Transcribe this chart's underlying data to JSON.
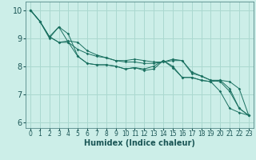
{
  "background_color": "#cceee8",
  "grid_color": "#aad8d0",
  "line_color": "#1a7060",
  "marker_color": "#1a7060",
  "xlabel": "Humidex (Indice chaleur)",
  "xlim": [
    -0.5,
    23.5
  ],
  "ylim": [
    5.8,
    10.3
  ],
  "yticks": [
    6,
    7,
    8,
    9,
    10
  ],
  "xticks": [
    0,
    1,
    2,
    3,
    4,
    5,
    6,
    7,
    8,
    9,
    10,
    11,
    12,
    13,
    14,
    15,
    16,
    17,
    18,
    19,
    20,
    21,
    22,
    23
  ],
  "series": [
    [
      10.0,
      9.6,
      9.05,
      9.4,
      8.85,
      8.35,
      8.1,
      8.05,
      8.05,
      8.0,
      7.9,
      7.95,
      7.85,
      7.9,
      8.2,
      7.95,
      7.6,
      7.6,
      7.5,
      7.45,
      7.1,
      6.5,
      6.35,
      6.25
    ],
    [
      10.0,
      9.6,
      9.05,
      8.85,
      8.85,
      8.6,
      8.45,
      8.35,
      8.3,
      8.2,
      8.15,
      8.15,
      8.1,
      8.1,
      8.15,
      8.2,
      8.2,
      7.75,
      7.65,
      7.5,
      7.45,
      7.1,
      6.5,
      6.25
    ],
    [
      10.0,
      9.6,
      9.0,
      9.4,
      9.15,
      8.35,
      8.1,
      8.05,
      8.05,
      8.0,
      7.9,
      7.95,
      7.9,
      8.0,
      8.2,
      8.0,
      7.6,
      7.6,
      7.5,
      7.45,
      7.5,
      7.45,
      7.2,
      6.25
    ],
    [
      10.0,
      9.6,
      9.05,
      8.85,
      8.9,
      8.85,
      8.55,
      8.4,
      8.3,
      8.2,
      8.2,
      8.25,
      8.2,
      8.15,
      8.15,
      8.25,
      8.2,
      7.8,
      7.65,
      7.5,
      7.5,
      7.2,
      6.5,
      6.25
    ]
  ],
  "xlabel_fontsize": 7,
  "tick_fontsize_x": 5.5,
  "tick_fontsize_y": 7
}
